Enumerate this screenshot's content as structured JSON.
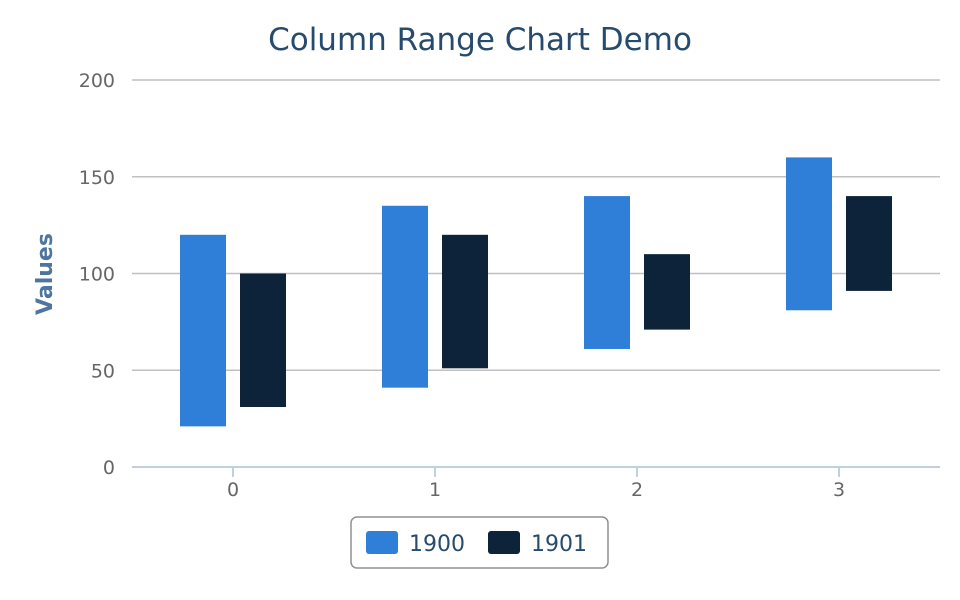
{
  "chart_data": {
    "type": "columnrange",
    "title": "Column Range Chart Demo",
    "xlabel": "",
    "ylabel": "Values",
    "categories": [
      "0",
      "1",
      "2",
      "3"
    ],
    "ylim": [
      0,
      200
    ],
    "yticks": [
      0,
      50,
      100,
      150,
      200
    ],
    "grid": true,
    "legend_position": "bottom-center",
    "series": [
      {
        "name": "1900",
        "color": "#2f7ed8",
        "ranges": [
          [
            21,
            120
          ],
          [
            41,
            135
          ],
          [
            61,
            140
          ],
          [
            81,
            160
          ]
        ]
      },
      {
        "name": "1901",
        "color": "#0d233a",
        "ranges": [
          [
            31,
            100
          ],
          [
            51,
            120
          ],
          [
            71,
            110
          ],
          [
            91,
            140
          ]
        ]
      }
    ]
  }
}
